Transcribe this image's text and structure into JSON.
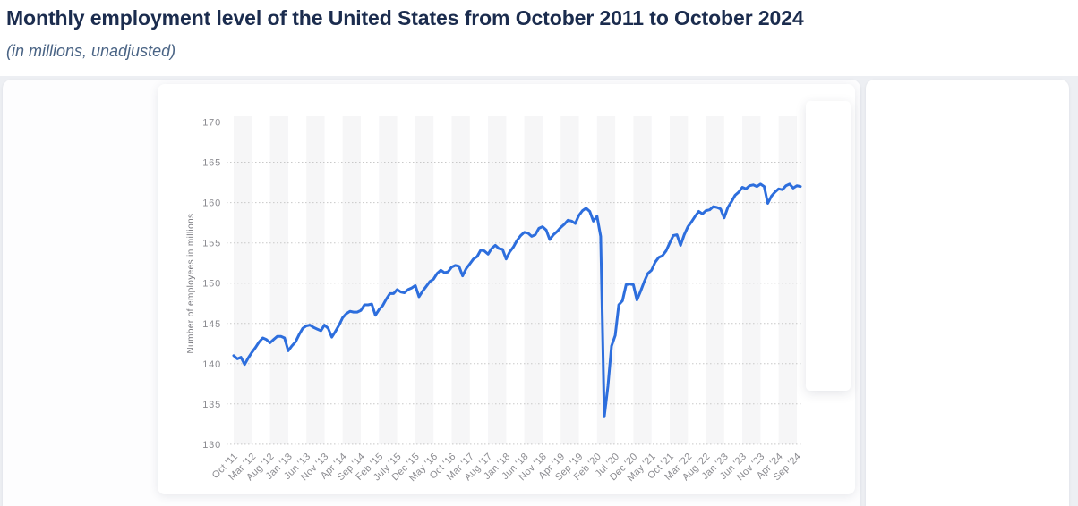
{
  "header": {
    "title": "Monthly employment level of the United States from October 2011 to October 2024",
    "subtitle": "(in millions, unadjusted)"
  },
  "colors": {
    "title_text": "#1b2c4e",
    "subtitle_text": "#4a6485",
    "line": "#2d6edd",
    "axis_text": "#8b8b90",
    "axis_title_text": "#77777d",
    "gridline": "#c8c8c8",
    "plot_band": "#f6f6f7",
    "page_background": "#edeff3",
    "card_background": "#ffffff"
  },
  "chart_data": {
    "type": "line",
    "title": "Monthly employment level of the United States from October 2011 to October 2024",
    "subtitle": "(in millions, unadjusted)",
    "xlabel": "",
    "ylabel": "Number of employees in millions",
    "ylim": [
      130,
      170
    ],
    "yticks": [
      130,
      135,
      140,
      145,
      150,
      155,
      160,
      165,
      170
    ],
    "grid": "horizontal dotted lines, alternating vertical background bands every 5 months",
    "legend_position": "none",
    "x_tick_labels": [
      "Oct '11",
      "Mar '12",
      "Aug '12",
      "Jan '13",
      "Jun '13",
      "Nov '13",
      "Apr '14",
      "Sep '14",
      "Feb '15",
      "July '15",
      "Dec '15",
      "May '16",
      "Oct '16",
      "Mar '17",
      "Aug '17",
      "Jan '18",
      "Jun '18",
      "Nov '18",
      "Apr '19",
      "Sep '19",
      "Feb '20",
      "Jul '20",
      "Dec '20",
      "May '21",
      "Oct '21",
      "Mar '22",
      "Aug '22",
      "Jan '23",
      "Jun '23",
      "Nov '23",
      "Apr '24",
      "Sep '24"
    ],
    "x_tick_interval_months": 5,
    "series": [
      {
        "name": "Number of employees in millions",
        "start": "Oct 2011",
        "end": "Oct 2024",
        "frequency": "monthly",
        "values": [
          141.0,
          140.6,
          140.8,
          139.9,
          140.7,
          141.4,
          142.0,
          142.7,
          143.2,
          143.0,
          142.6,
          143.0,
          143.4,
          143.4,
          143.2,
          141.6,
          142.2,
          142.7,
          143.6,
          144.4,
          144.7,
          144.8,
          144.5,
          144.3,
          144.1,
          144.8,
          144.4,
          143.3,
          144.0,
          144.8,
          145.7,
          146.2,
          146.5,
          146.4,
          146.4,
          146.6,
          147.3,
          147.3,
          147.4,
          146.0,
          146.7,
          147.2,
          148.0,
          148.7,
          148.7,
          149.2,
          148.9,
          148.8,
          149.2,
          149.4,
          149.7,
          148.3,
          149.0,
          149.6,
          150.2,
          150.5,
          151.2,
          151.6,
          151.3,
          151.4,
          152.0,
          152.2,
          152.1,
          150.9,
          151.8,
          152.4,
          153.0,
          153.3,
          154.1,
          154.0,
          153.6,
          154.3,
          154.7,
          154.3,
          154.2,
          153.0,
          153.9,
          154.5,
          155.3,
          155.9,
          156.3,
          156.2,
          155.8,
          156.0,
          156.8,
          157.0,
          156.6,
          155.4,
          156.0,
          156.4,
          156.9,
          157.3,
          157.8,
          157.7,
          157.4,
          158.4,
          159.0,
          159.3,
          158.9,
          157.7,
          158.3,
          155.8,
          133.4,
          137.2,
          142.2,
          143.5,
          147.3,
          147.8,
          149.8,
          149.9,
          149.8,
          147.9,
          149.0,
          150.2,
          151.2,
          151.6,
          152.6,
          153.2,
          153.4,
          154.0,
          155.0,
          155.9,
          156.0,
          154.7,
          156.0,
          157.0,
          157.6,
          158.3,
          158.9,
          158.6,
          159.0,
          159.1,
          159.5,
          159.4,
          159.2,
          158.1,
          159.4,
          160.1,
          160.9,
          161.3,
          161.9,
          161.7,
          162.1,
          162.2,
          162.0,
          162.3,
          162.0,
          159.9,
          160.8,
          161.3,
          161.7,
          161.6,
          162.1,
          162.3,
          161.8,
          162.1,
          162.0
        ]
      }
    ]
  }
}
